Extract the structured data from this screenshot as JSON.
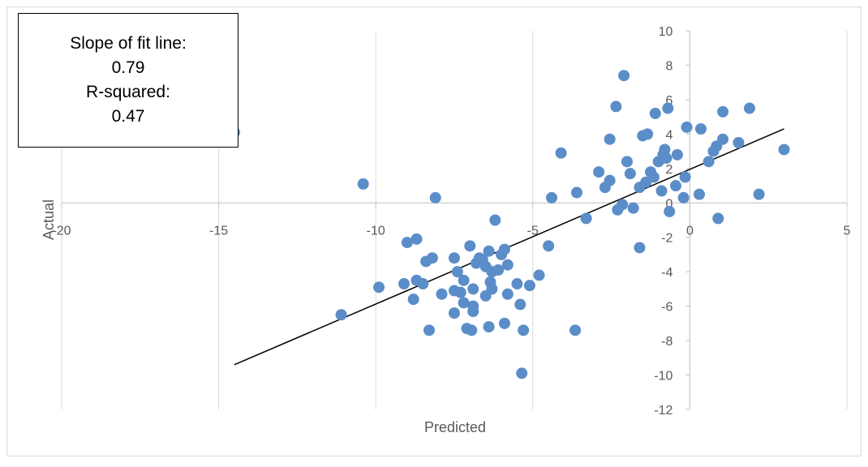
{
  "chart_data": {
    "type": "scatter",
    "title": "",
    "xlabel": "Predicted",
    "ylabel": "Actual",
    "xlim": [
      -20,
      5
    ],
    "ylim": [
      -12,
      10
    ],
    "x_ticks": [
      -20,
      -15,
      -10,
      -5,
      0,
      5
    ],
    "y_ticks": [
      -12,
      -10,
      -8,
      -6,
      -4,
      -2,
      0,
      2,
      4,
      6,
      8,
      10
    ],
    "grid": "vertical",
    "marker_color": "#5B8DC8",
    "fit_line": {
      "x": [
        -14.5,
        3.0
      ],
      "y": [
        -9.4,
        4.3
      ],
      "color": "#000000"
    },
    "annotations": [
      {
        "label": "Slope of fit line:",
        "value": "0.79"
      },
      {
        "label": "R-squared:",
        "value": "0.47"
      }
    ],
    "points": [
      [
        -14.5,
        4.1
      ],
      [
        -11.1,
        -6.5
      ],
      [
        -10.4,
        1.1
      ],
      [
        -9.9,
        -4.9
      ],
      [
        -9.1,
        -4.7
      ],
      [
        -9.0,
        -2.3
      ],
      [
        -8.8,
        -5.6
      ],
      [
        -8.7,
        -2.1
      ],
      [
        -8.7,
        -4.5
      ],
      [
        -8.5,
        -4.7
      ],
      [
        -8.4,
        -3.4
      ],
      [
        -8.3,
        -7.4
      ],
      [
        -8.2,
        -3.2
      ],
      [
        -8.1,
        0.3
      ],
      [
        -7.9,
        -5.3
      ],
      [
        -7.5,
        -6.4
      ],
      [
        -7.5,
        -5.1
      ],
      [
        -7.5,
        -3.2
      ],
      [
        -7.4,
        -4.0
      ],
      [
        -7.3,
        -5.2
      ],
      [
        -7.2,
        -4.5
      ],
      [
        -7.2,
        -5.8
      ],
      [
        -7.1,
        -7.3
      ],
      [
        -7.0,
        -2.5
      ],
      [
        -6.95,
        -7.4
      ],
      [
        -6.9,
        -5.0
      ],
      [
        -6.9,
        -6.3
      ],
      [
        -6.9,
        -6.0
      ],
      [
        -6.8,
        -3.5
      ],
      [
        -6.7,
        -3.2
      ],
      [
        -6.6,
        -3.3
      ],
      [
        -6.5,
        -5.4
      ],
      [
        -6.5,
        -3.7
      ],
      [
        -6.4,
        -2.8
      ],
      [
        -6.4,
        -7.2
      ],
      [
        -6.35,
        -4.6
      ],
      [
        -6.3,
        -5.0
      ],
      [
        -6.3,
        -4.0
      ],
      [
        -6.2,
        -1.0
      ],
      [
        -6.1,
        -3.9
      ],
      [
        -6.0,
        -3.0
      ],
      [
        -5.9,
        -2.7
      ],
      [
        -5.9,
        -7.0
      ],
      [
        -5.8,
        -5.3
      ],
      [
        -5.8,
        -3.6
      ],
      [
        -5.5,
        -4.7
      ],
      [
        -5.4,
        -5.9
      ],
      [
        -5.35,
        -9.9
      ],
      [
        -5.3,
        -7.4
      ],
      [
        -5.1,
        -4.8
      ],
      [
        -4.8,
        -4.2
      ],
      [
        -4.5,
        -2.5
      ],
      [
        -4.4,
        0.3
      ],
      [
        -4.1,
        2.9
      ],
      [
        -3.65,
        -7.4
      ],
      [
        -3.6,
        0.6
      ],
      [
        -3.3,
        -0.9
      ],
      [
        -2.9,
        1.8
      ],
      [
        -2.7,
        0.9
      ],
      [
        -2.55,
        3.7
      ],
      [
        -2.55,
        1.3
      ],
      [
        -2.35,
        5.6
      ],
      [
        -2.3,
        -0.4
      ],
      [
        -2.1,
        7.4
      ],
      [
        -2.15,
        -0.1
      ],
      [
        -2.0,
        2.4
      ],
      [
        -1.9,
        1.7
      ],
      [
        -1.8,
        -0.3
      ],
      [
        -1.6,
        -2.6
      ],
      [
        -1.6,
        0.9
      ],
      [
        -1.5,
        3.9
      ],
      [
        -1.4,
        1.2
      ],
      [
        -1.35,
        4.0
      ],
      [
        -1.25,
        1.8
      ],
      [
        -1.15,
        1.5
      ],
      [
        -1.1,
        5.2
      ],
      [
        -1.0,
        2.4
      ],
      [
        -0.9,
        0.7
      ],
      [
        -0.85,
        2.8
      ],
      [
        -0.8,
        3.1
      ],
      [
        -0.75,
        2.6
      ],
      [
        -0.7,
        5.5
      ],
      [
        -0.65,
        -0.5
      ],
      [
        -0.45,
        1.0
      ],
      [
        -0.4,
        2.8
      ],
      [
        -0.2,
        0.3
      ],
      [
        -0.1,
        4.4
      ],
      [
        -0.15,
        1.5
      ],
      [
        0.3,
        0.5
      ],
      [
        0.35,
        4.3
      ],
      [
        0.6,
        2.4
      ],
      [
        0.75,
        3.0
      ],
      [
        0.85,
        3.3
      ],
      [
        0.9,
        -0.9
      ],
      [
        1.05,
        3.7
      ],
      [
        1.05,
        5.3
      ],
      [
        1.55,
        3.5
      ],
      [
        1.9,
        5.5
      ],
      [
        2.2,
        0.5
      ],
      [
        3.0,
        3.1
      ]
    ]
  }
}
